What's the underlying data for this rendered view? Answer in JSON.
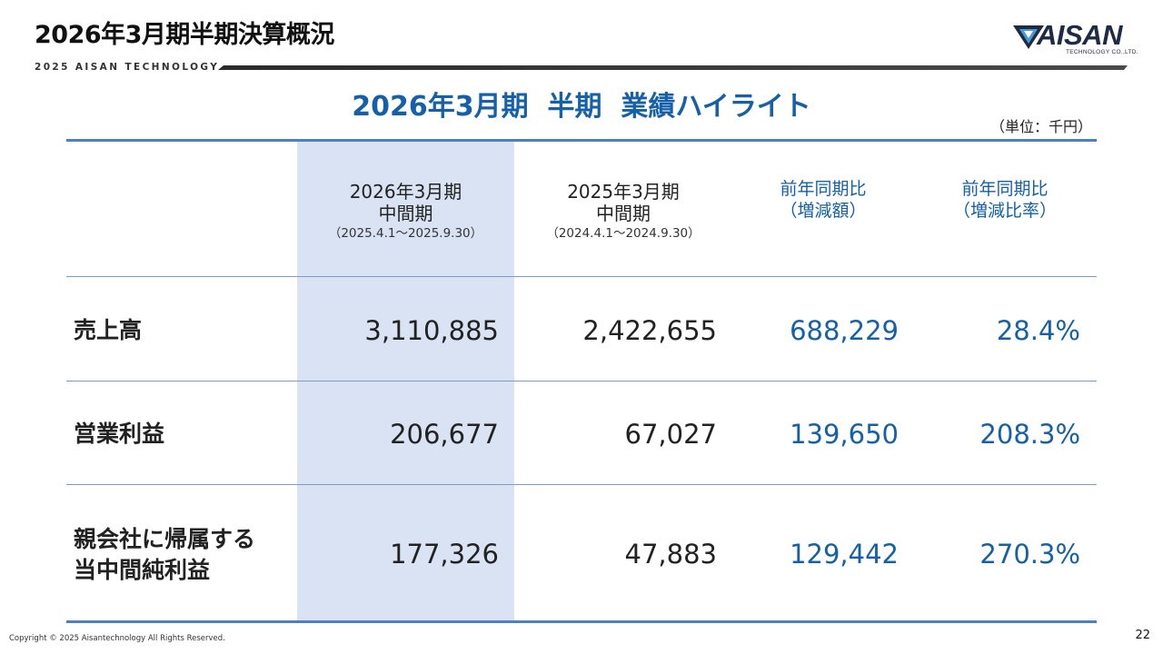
{
  "header": {
    "title": "2026年3月期半期決算概況",
    "brand_line": "2025 AISAN TECHNOLOGY",
    "logo_text": "AISAN",
    "logo_subtext": "TECHNOLOGY CO.,LTD."
  },
  "section_title": "2026年3月期  半期  業績ハイライト",
  "unit_note": "（単位：千円）",
  "table": {
    "columns": [
      {
        "line1": "2026年3月期",
        "line2": "中間期",
        "period": "（2025.4.1～2025.9.30）"
      },
      {
        "line1": "2025年3月期",
        "line2": "中間期",
        "period": "（2024.4.1～2024.9.30）"
      },
      {
        "line1": "前年同期比",
        "line2": "（増減額）"
      },
      {
        "line1": "前年同期比",
        "line2": "（増減比率）"
      }
    ],
    "rows": [
      {
        "label_line1": "売上高",
        "label_line2": "",
        "current": "3,110,885",
        "previous": "2,422,655",
        "diff": "688,229",
        "ratio": "28.4%"
      },
      {
        "label_line1": "営業利益",
        "label_line2": "",
        "current": "206,677",
        "previous": "67,027",
        "diff": "139,650",
        "ratio": "208.3%"
      },
      {
        "label_line1": "親会社に帰属する",
        "label_line2": "当中間純利益",
        "current": "177,326",
        "previous": "47,883",
        "diff": "129,442",
        "ratio": "270.3%"
      }
    ]
  },
  "footer": {
    "copyright": "Copyright © 2025 Aisantechnology All Rights Reserved.",
    "page_number": "22"
  },
  "colors": {
    "accent_blue": "#1560a8",
    "shade": "#d9e3f3",
    "rule": "#4d7fc4"
  }
}
